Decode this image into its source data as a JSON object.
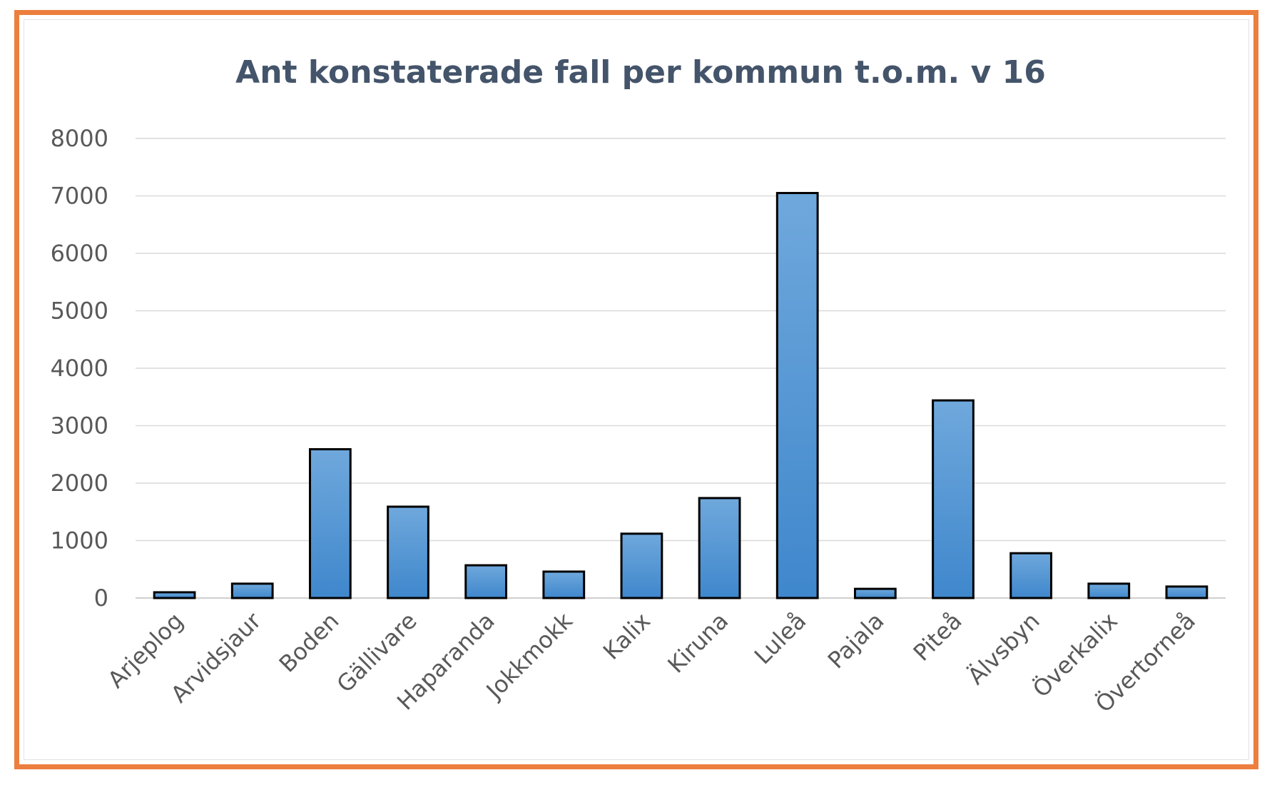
{
  "chart_data": {
    "type": "bar",
    "title": "Ant konstaterade fall per kommun t.o.m. v 16",
    "xlabel": "",
    "ylabel": "",
    "categories": [
      "Arjeplog",
      "Arvidsjaur",
      "Boden",
      "Gällivare",
      "Haparanda",
      "Jokkmokk",
      "Kalix",
      "Kiruna",
      "Luleå",
      "Pajala",
      "Piteå",
      "Älvsbyn",
      "Överkalix",
      "Övertorneå"
    ],
    "values": [
      100,
      250,
      2590,
      1590,
      570,
      460,
      1120,
      1740,
      7050,
      160,
      3440,
      780,
      250,
      200
    ],
    "ylim": [
      0,
      8000
    ],
    "yticks": [
      "0",
      "1000",
      "2000",
      "3000",
      "4000",
      "5000",
      "6000",
      "7000",
      "8000"
    ],
    "grid": true,
    "legend": "none",
    "bar_color": "#5b9bd5",
    "frame_color": "#ec7f3e"
  }
}
